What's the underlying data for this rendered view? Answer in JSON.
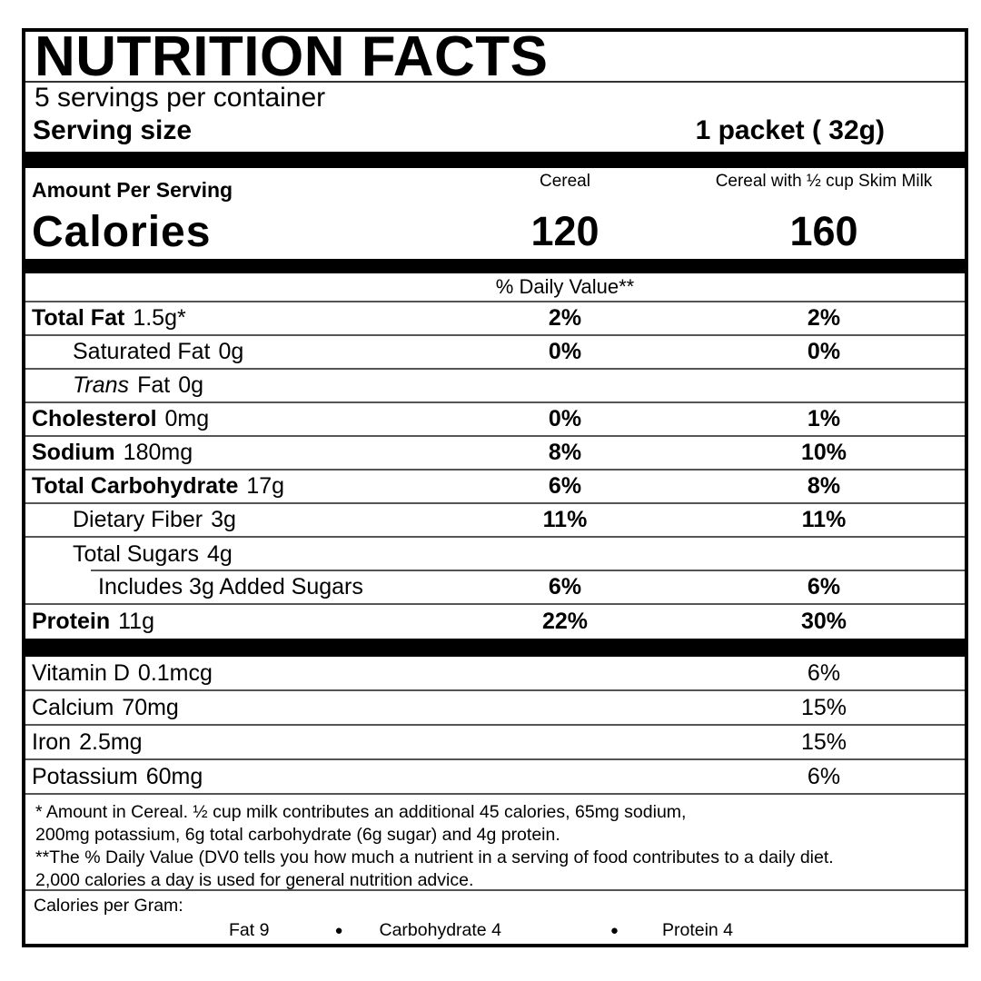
{
  "label": {
    "title": "NUTRITION FACTS",
    "servings_per_container": "5 servings per container",
    "serving_size_label": "Serving size",
    "serving_size_value": "1 packet ( 32g)",
    "amount_per_serving": "Amount Per Serving",
    "columns": {
      "cereal": "Cereal",
      "cereal_milk": "Cereal with ½ cup Skim Milk"
    },
    "calories_label": "Calories",
    "calories": {
      "cereal": "120",
      "cereal_milk": "160"
    },
    "daily_value_header": "% Daily Value**",
    "nutrients": [
      {
        "name": "Total Fat",
        "amount": "1.5g*",
        "dv_cereal": "2%",
        "dv_milk": "2%"
      },
      {
        "name": "Saturated Fat",
        "amount": "0g",
        "dv_cereal": "0%",
        "dv_milk": "0%"
      },
      {
        "name_italic": "Trans",
        "name": "Fat",
        "amount": "0g",
        "dv_cereal": "",
        "dv_milk": ""
      },
      {
        "name": "Cholesterol",
        "amount": "0mg",
        "dv_cereal": "0%",
        "dv_milk": "1%"
      },
      {
        "name": "Sodium",
        "amount": "180mg",
        "dv_cereal": "8%",
        "dv_milk": "10%"
      },
      {
        "name": "Total Carbohydrate",
        "amount": "17g",
        "dv_cereal": "6%",
        "dv_milk": "8%"
      },
      {
        "name": "Dietary Fiber",
        "amount": "3g",
        "dv_cereal": "11%",
        "dv_milk": "11%"
      },
      {
        "name": "Total Sugars",
        "amount": "4g",
        "dv_cereal": "",
        "dv_milk": ""
      },
      {
        "name": "Includes 3g  Added Sugars",
        "amount": "",
        "dv_cereal": "6%",
        "dv_milk": "6%"
      },
      {
        "name": "Protein",
        "amount": "11g",
        "dv_cereal": "22%",
        "dv_milk": "30%"
      }
    ],
    "micronutrients": [
      {
        "name": "Vitamin D",
        "amount": "0.1mcg",
        "dv_milk": "6%"
      },
      {
        "name": "Calcium",
        "amount": "70mg",
        "dv_milk": "15%"
      },
      {
        "name": "Iron",
        "amount": "2.5mg",
        "dv_milk": "15%"
      },
      {
        "name": "Potassium",
        "amount": "60mg",
        "dv_milk": "6%"
      }
    ],
    "footnotes": [
      "* Amount in Cereal. ½ cup milk contributes an additional 45 calories, 65mg sodium,",
      "200mg potassium, 6g total carbohydrate (6g sugar) and 4g protein.",
      "**The % Daily Value (DV0 tells you how much a nutrient in a serving of food contributes to a daily diet.",
      "2,000 calories a day is used for general nutrition advice."
    ],
    "calories_per_gram": {
      "label": "Calories per Gram:",
      "fat": "Fat 9",
      "carbohydrate": "Carbohydrate 4",
      "protein": "Protein 4",
      "separator": "●"
    }
  }
}
